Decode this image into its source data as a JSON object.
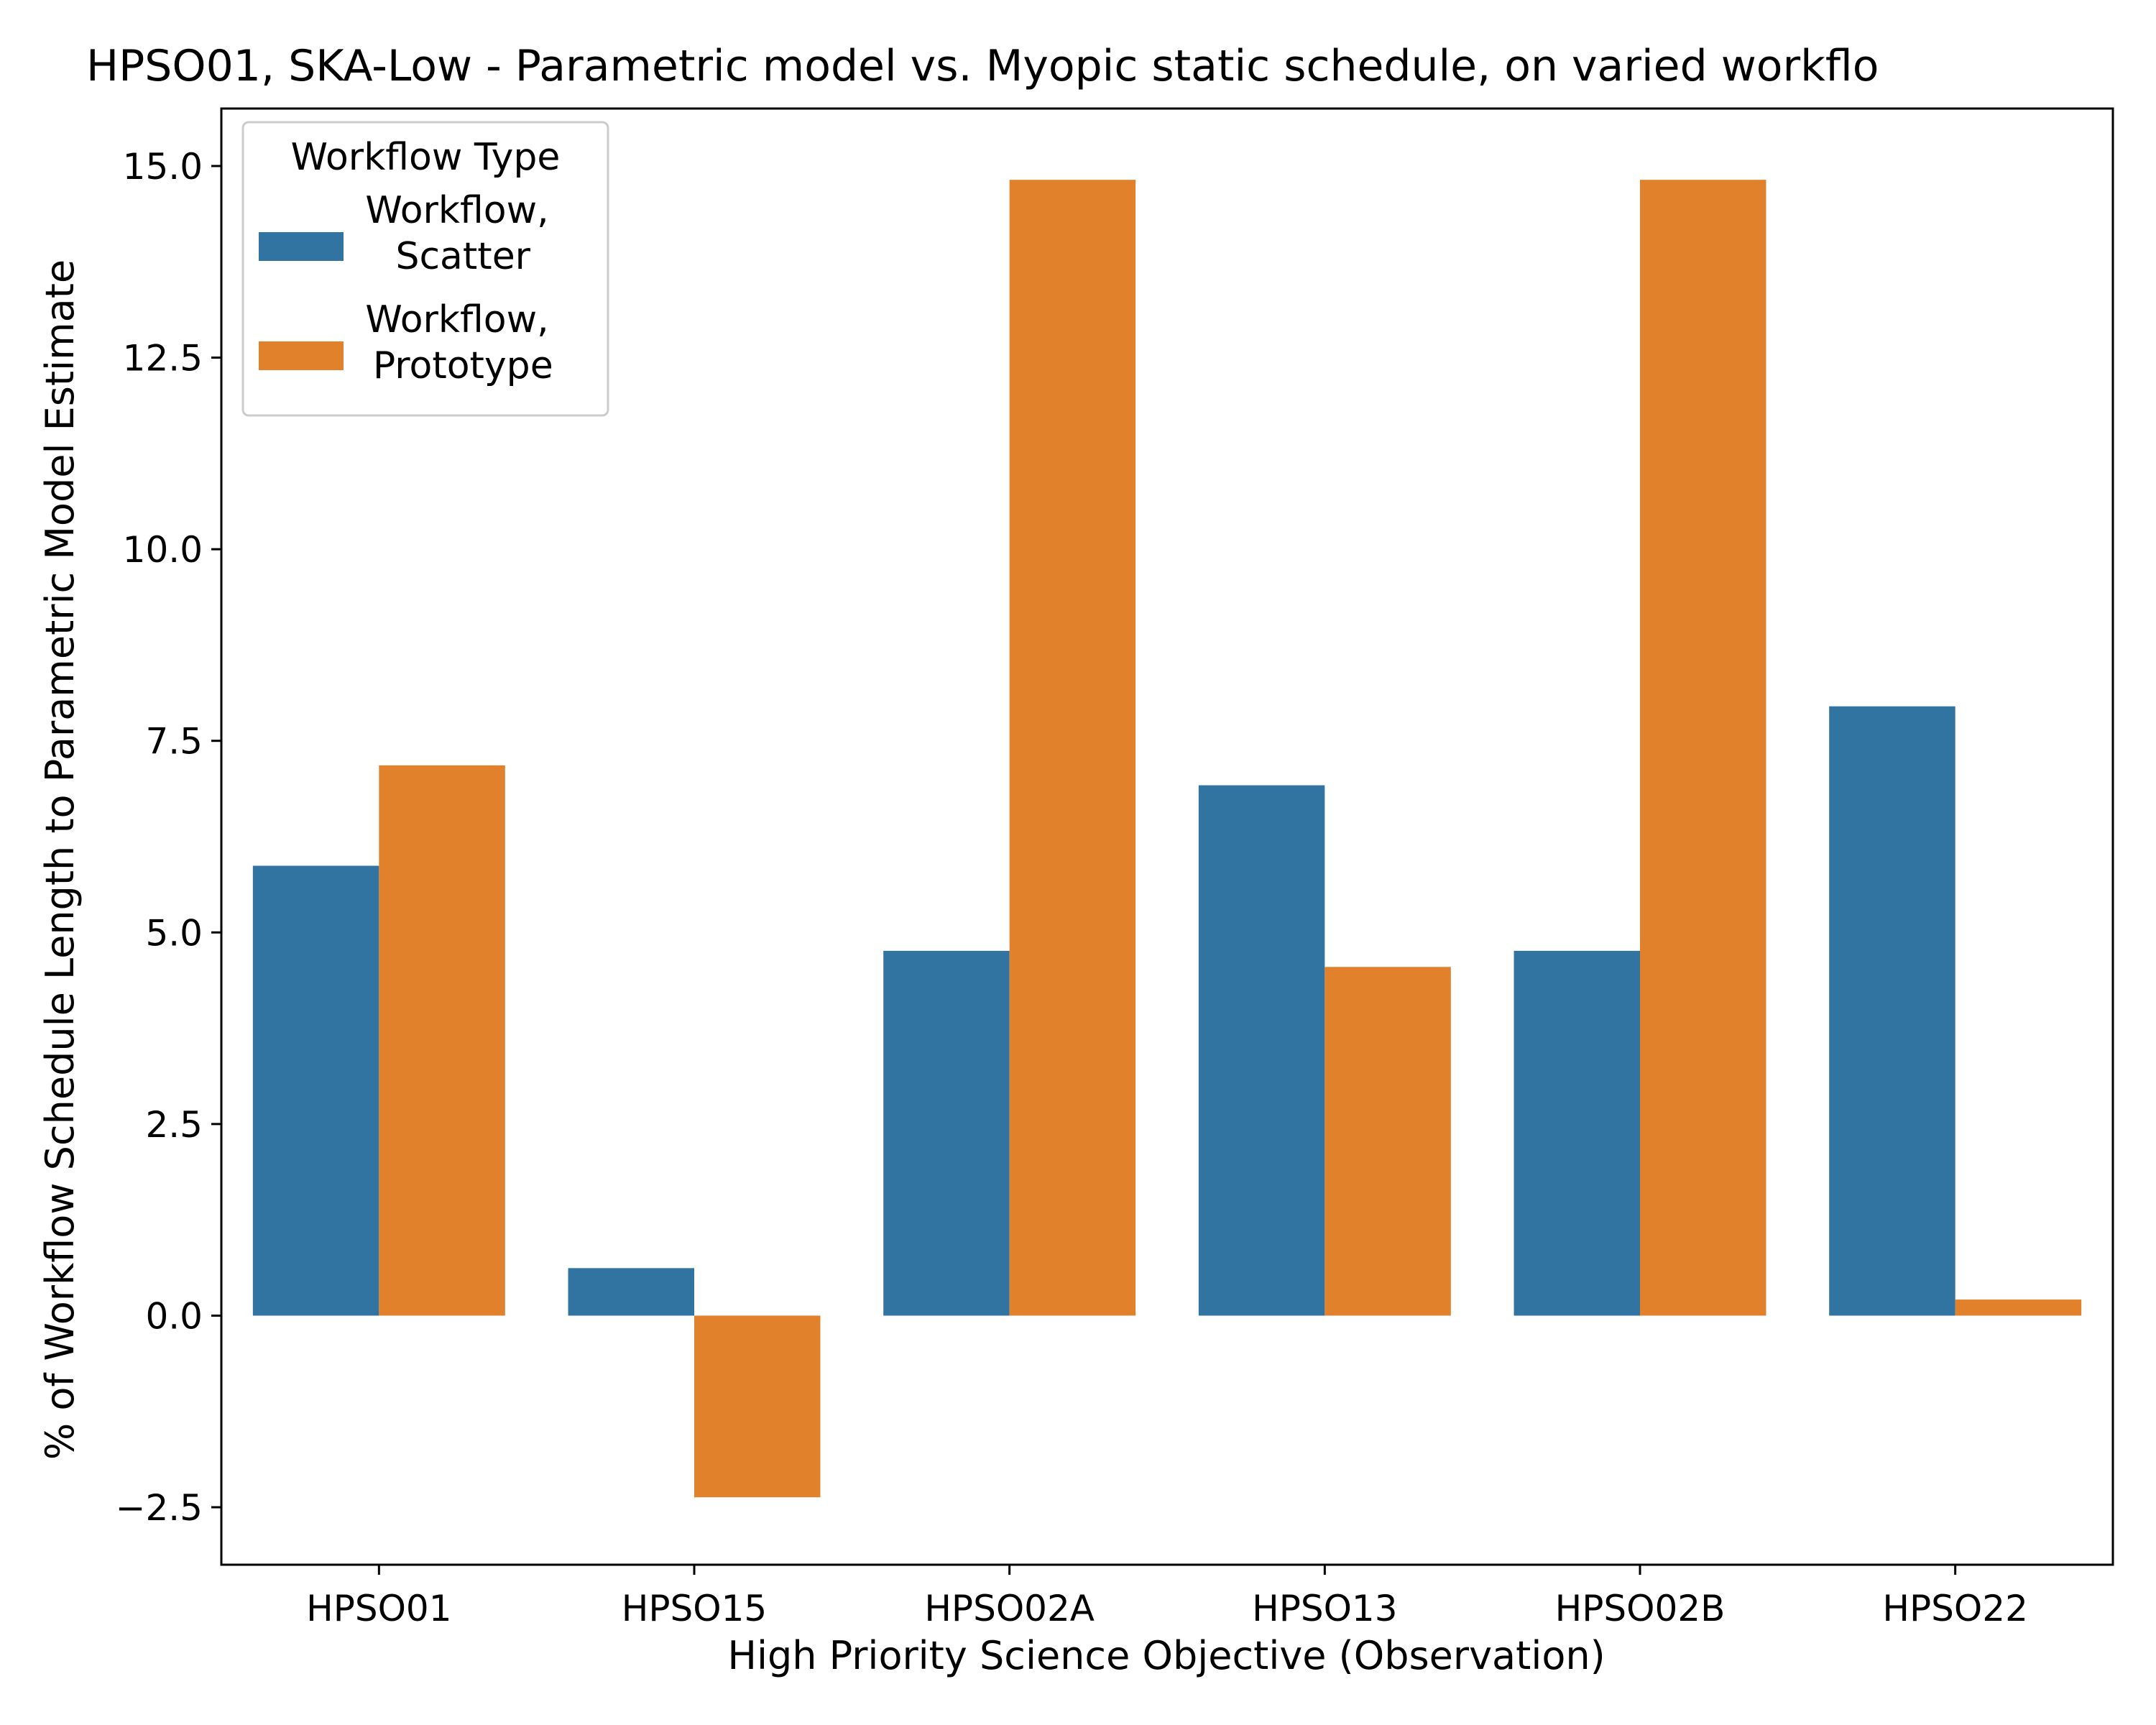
{
  "chart_data": {
    "type": "bar",
    "title": "HPSO01, SKA-Low - Parametric model vs. Myopic static schedule, on varied workflo",
    "xlabel": "High Priority Science Objective (Observation)",
    "ylabel": "% of Workflow Schedule Length to Parametric Model Estimate",
    "categories": [
      "HPSO01",
      "HPSO15",
      "HPSO02A",
      "HPSO13",
      "HPSO02B",
      "HPSO22"
    ],
    "series": [
      {
        "name": "Workflow,\n Scatter",
        "color": "#3274a1",
        "values": [
          5.87,
          0.62,
          4.76,
          6.92,
          4.76,
          7.95
        ]
      },
      {
        "name": "Workflow,\n Prototype",
        "color": "#e1812c",
        "values": [
          7.18,
          -2.37,
          14.82,
          4.55,
          14.82,
          0.21
        ]
      }
    ],
    "ylim": [
      -3.25,
      15.75
    ],
    "yticks": [
      -2.5,
      0.0,
      2.5,
      5.0,
      7.5,
      10.0,
      12.5,
      15.0
    ],
    "ytick_labels": [
      "−2.5",
      "0.0",
      "2.5",
      "5.0",
      "7.5",
      "10.0",
      "12.5",
      "15.0"
    ],
    "legend": {
      "title": "Workflow Type",
      "placement": "top-left"
    },
    "grid": false
  }
}
